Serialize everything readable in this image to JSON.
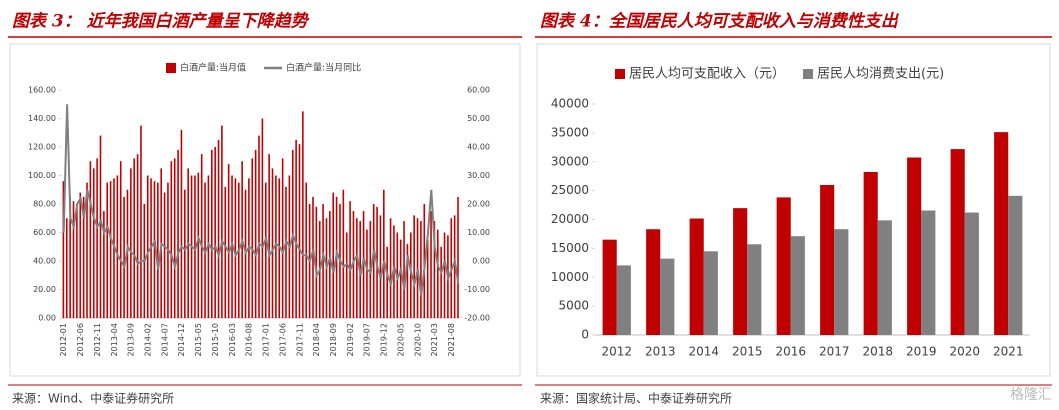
{
  "chart_data": [
    {
      "type": "bar",
      "title": "图表 3：  近年我国白酒产量呈下降趋势",
      "source": "来源：Wind、中泰证券研究所",
      "legend": "top",
      "categories": [
        "2012-01",
        null,
        null,
        null,
        null,
        "2012-06",
        null,
        null,
        null,
        null,
        "2012-11",
        null,
        null,
        null,
        null,
        "2013-04",
        null,
        null,
        null,
        null,
        "2013-09",
        null,
        null,
        null,
        null,
        "2014-02",
        null,
        null,
        null,
        null,
        "2014-07",
        null,
        null,
        null,
        null,
        "2014-12",
        null,
        null,
        null,
        null,
        "2015-05",
        null,
        null,
        null,
        null,
        "2015-10",
        null,
        null,
        null,
        null,
        "2016-03",
        null,
        null,
        null,
        null,
        "2016-08",
        null,
        null,
        null,
        null,
        "2017-01",
        null,
        null,
        null,
        null,
        "2017-06",
        null,
        null,
        null,
        null,
        "2017-11",
        null,
        null,
        null,
        null,
        "2018-04",
        null,
        null,
        null,
        null,
        "2018-09",
        null,
        null,
        null,
        null,
        "2019-02",
        null,
        null,
        null,
        null,
        "2019-07",
        null,
        null,
        null,
        null,
        "2019-12",
        null,
        null,
        null,
        null,
        "2020-05",
        null,
        null,
        null,
        null,
        "2020-10",
        null,
        null,
        null,
        null,
        "2021-03",
        null,
        null,
        null,
        null,
        "2021-08",
        null,
        null
      ],
      "series": [
        {
          "name": "白酒产量:当月值",
          "color": "#c00000",
          "values": [
            96,
            70,
            85,
            82,
            80,
            88,
            85,
            95,
            110,
            105,
            112,
            128,
            75,
            95,
            96,
            98,
            100,
            110,
            85,
            90,
            105,
            112,
            115,
            135,
            80,
            100,
            98,
            96,
            95,
            105,
            88,
            95,
            110,
            112,
            118,
            132,
            90,
            105,
            100,
            100,
            102,
            115,
            95,
            100,
            118,
            120,
            125,
            135,
            92,
            108,
            100,
            98,
            95,
            110,
            90,
            98,
            112,
            118,
            128,
            140,
            95,
            115,
            105,
            100,
            98,
            112,
            92,
            100,
            118,
            125,
            122,
            145,
            95,
            80,
            85,
            78,
            68,
            80,
            70,
            75,
            88,
            85,
            80,
            90,
            60,
            82,
            75,
            70,
            68,
            75,
            62,
            68,
            80,
            78,
            72,
            90,
            50,
            70,
            65,
            60,
            55,
            68,
            52,
            60,
            72,
            70,
            68,
            80,
            55,
            75,
            68,
            62,
            50,
            60,
            58,
            70,
            72,
            85
          ]
        },
        {
          "name": "白酒产量:当月同比",
          "color": "#808080",
          "type": "line",
          "axis": "y2",
          "values": [
            10,
            55,
            15,
            12,
            20,
            22,
            15,
            25,
            20,
            15,
            12,
            14,
            10,
            12,
            8,
            5,
            2,
            0,
            -2,
            5,
            3,
            2,
            -1,
            0,
            0,
            3,
            5,
            7,
            -3,
            6,
            5,
            4,
            2,
            -2,
            3,
            5,
            4,
            6,
            5,
            4,
            8,
            5,
            3,
            6,
            4,
            5,
            2,
            7,
            5,
            3,
            6,
            2,
            4,
            7,
            3,
            5,
            4,
            2,
            6,
            5,
            8,
            2,
            4,
            6,
            5,
            3,
            7,
            5,
            9,
            6,
            4,
            2,
            2,
            0,
            4,
            -5,
            -3,
            2,
            -2,
            1,
            -4,
            3,
            0,
            -2,
            -1,
            -3,
            0,
            2,
            -5,
            1,
            -3,
            -4,
            4,
            -2,
            -6,
            0,
            -5,
            -8,
            -2,
            -6,
            -3,
            -10,
            2,
            -4,
            -8,
            -3,
            -12,
            -2,
            10,
            25,
            5,
            -2,
            -4,
            0,
            -6,
            -3,
            0,
            -8
          ]
        }
      ],
      "ylim": [
        0,
        160
      ],
      "yticks": [
        {
          "value": 0,
          "label": "0.00"
        },
        {
          "value": 20,
          "label": "20.00"
        },
        {
          "value": 40,
          "label": "40.00"
        },
        {
          "value": 60,
          "label": "60.00"
        },
        {
          "value": 80,
          "label": "80.00"
        },
        {
          "value": 100,
          "label": "100.00"
        },
        {
          "value": 120,
          "label": "120.00"
        },
        {
          "value": 140,
          "label": "140.00"
        },
        {
          "value": 160,
          "label": "160.00"
        }
      ],
      "y2lim": [
        -20,
        60
      ],
      "y2ticks": [
        {
          "value": -20,
          "label": "-20.00"
        },
        {
          "value": -10,
          "label": "-10.00"
        },
        {
          "value": 0,
          "label": "0.00"
        },
        {
          "value": 10,
          "label": "10.00"
        },
        {
          "value": 20,
          "label": "20.00"
        },
        {
          "value": 30,
          "label": "30.00"
        },
        {
          "value": 40,
          "label": "40.00"
        },
        {
          "value": 50,
          "label": "50.00"
        },
        {
          "value": 60,
          "label": "60.00"
        }
      ]
    },
    {
      "type": "bar",
      "title": "图表 4：全国居民人均可支配收入与消费性支出",
      "source": "来源：国家统计局、中泰证券研究所",
      "legend": "top-left",
      "watermark": "格隆汇",
      "categories": [
        "2012",
        "2013",
        "2014",
        "2015",
        "2016",
        "2017",
        "2018",
        "2019",
        "2020",
        "2021"
      ],
      "series": [
        {
          "name": "居民人均可支配收入（元）",
          "color": "#c00000",
          "values": [
            16510,
            18311,
            20167,
            21966,
            23821,
            25974,
            28228,
            30733,
            32189,
            35128
          ]
        },
        {
          "name": "居民人均消费支出(元)",
          "color": "#808080",
          "values": [
            12054,
            13220,
            14491,
            15712,
            17111,
            18322,
            19853,
            21559,
            21210,
            24100
          ]
        }
      ],
      "ylim": [
        0,
        40000
      ],
      "yticks": [
        0,
        5000,
        10000,
        15000,
        20000,
        25000,
        30000,
        35000,
        40000
      ]
    }
  ]
}
